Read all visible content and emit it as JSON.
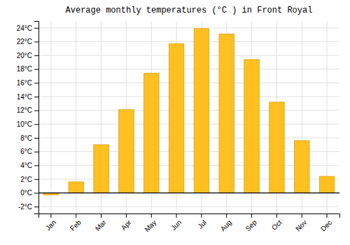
{
  "chart_data": {
    "type": "bar",
    "title": "Average monthly temperatures (°C ) in Front Royal",
    "categories": [
      "Jan",
      "Feb",
      "Mar",
      "Apr",
      "May",
      "Jun",
      "Jul",
      "Aug",
      "Sep",
      "Oct",
      "Nov",
      "Dec"
    ],
    "values": [
      -0.3,
      1.6,
      7.0,
      12.1,
      17.4,
      21.7,
      23.9,
      23.1,
      19.4,
      13.2,
      7.6,
      2.4
    ],
    "color": "#FFC020",
    "ylim": [
      -3,
      25
    ],
    "yticks": [
      {
        "value": -2,
        "label": "-2°C"
      },
      {
        "value": 0,
        "label": "0°C"
      },
      {
        "value": 2,
        "label": "2°C"
      },
      {
        "value": 4,
        "label": "4°C"
      },
      {
        "value": 6,
        "label": "6°C"
      },
      {
        "value": 8,
        "label": "8°C"
      },
      {
        "value": 10,
        "label": "10°C"
      },
      {
        "value": 12,
        "label": "12°C"
      },
      {
        "value": 14,
        "label": "14°C"
      },
      {
        "value": 16,
        "label": "16°C"
      },
      {
        "value": 18,
        "label": "18°C"
      },
      {
        "value": 20,
        "label": "20°C"
      },
      {
        "value": 22,
        "label": "22°C"
      },
      {
        "value": 24,
        "label": "24°C"
      }
    ],
    "grid": true
  }
}
